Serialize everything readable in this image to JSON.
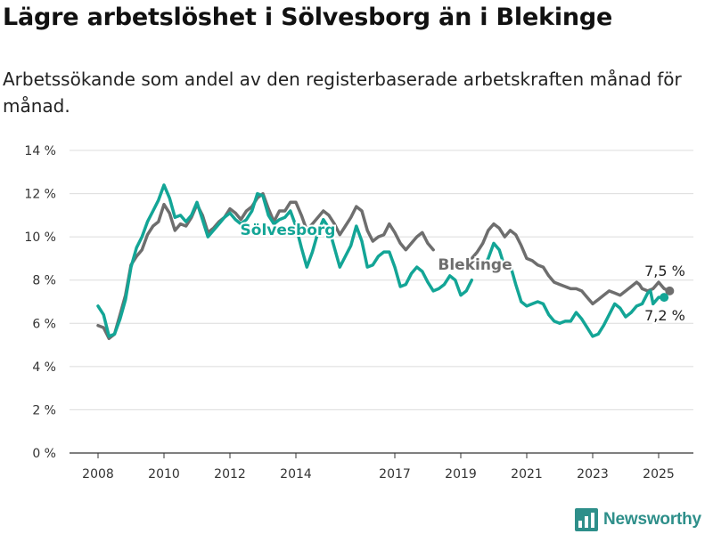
{
  "title": "Lägre arbetslöshet i Sölvesborg än i Blekinge",
  "subtitle": "Arbetssökande som andel av den registerbaserade arbetskraften månad för månad.",
  "brand": {
    "name": "Newsworthy",
    "color": "#2e8f8a",
    "icon": "bar-chart-icon"
  },
  "chart_data": {
    "type": "line",
    "ylim": [
      0,
      14
    ],
    "yticks": [
      "0 %",
      "2 %",
      "4 %",
      "6 %",
      "8 %",
      "10 %",
      "12 %",
      "14 %"
    ],
    "xticks": [
      "2008",
      "2010",
      "2012",
      "2014",
      "2017",
      "2019",
      "2021",
      "2023",
      "2025"
    ],
    "grid": true,
    "series": [
      {
        "name": "Blekinge",
        "color": "#6e6e6e",
        "end_label": "7,5 %",
        "points": [
          [
            "2008-01",
            5.9
          ],
          [
            "2008-03",
            5.8
          ],
          [
            "2008-05",
            5.3
          ],
          [
            "2008-07",
            5.5
          ],
          [
            "2008-09",
            6.4
          ],
          [
            "2008-11",
            7.3
          ],
          [
            "2009-01",
            8.7
          ],
          [
            "2009-03",
            9.1
          ],
          [
            "2009-05",
            9.4
          ],
          [
            "2009-07",
            10.1
          ],
          [
            "2009-09",
            10.5
          ],
          [
            "2009-11",
            10.7
          ],
          [
            "2010-01",
            11.5
          ],
          [
            "2010-03",
            11.1
          ],
          [
            "2010-05",
            10.3
          ],
          [
            "2010-07",
            10.6
          ],
          [
            "2010-09",
            10.5
          ],
          [
            "2010-11",
            10.9
          ],
          [
            "2011-01",
            11.5
          ],
          [
            "2011-03",
            11.0
          ],
          [
            "2011-05",
            10.2
          ],
          [
            "2011-07",
            10.4
          ],
          [
            "2011-09",
            10.7
          ],
          [
            "2011-11",
            10.9
          ],
          [
            "2012-01",
            11.3
          ],
          [
            "2012-03",
            11.1
          ],
          [
            "2012-05",
            10.8
          ],
          [
            "2012-07",
            11.2
          ],
          [
            "2012-09",
            11.4
          ],
          [
            "2012-11",
            11.8
          ],
          [
            "2013-01",
            12.0
          ],
          [
            "2013-03",
            11.3
          ],
          [
            "2013-05",
            10.7
          ],
          [
            "2013-07",
            11.2
          ],
          [
            "2013-09",
            11.2
          ],
          [
            "2013-11",
            11.6
          ],
          [
            "2014-01",
            11.6
          ],
          [
            "2014-03",
            11.0
          ],
          [
            "2014-05",
            10.3
          ],
          [
            "2014-07",
            10.6
          ],
          [
            "2014-09",
            10.9
          ],
          [
            "2014-11",
            11.2
          ],
          [
            "2015-01",
            11.0
          ],
          [
            "2015-03",
            10.6
          ],
          [
            "2015-05",
            10.1
          ],
          [
            "2015-07",
            10.5
          ],
          [
            "2015-09",
            10.9
          ],
          [
            "2015-11",
            11.4
          ],
          [
            "2016-01",
            11.2
          ],
          [
            "2016-03",
            10.3
          ],
          [
            "2016-05",
            9.8
          ],
          [
            "2016-07",
            10.0
          ],
          [
            "2016-09",
            10.1
          ],
          [
            "2016-11",
            10.6
          ],
          [
            "2017-01",
            10.2
          ],
          [
            "2017-03",
            9.7
          ],
          [
            "2017-05",
            9.4
          ],
          [
            "2017-07",
            9.7
          ],
          [
            "2017-09",
            10.0
          ],
          [
            "2017-11",
            10.2
          ],
          [
            "2018-01",
            9.7
          ],
          [
            "2018-03",
            9.4
          ]
        ],
        "points_b": [
          [
            "2019-05",
            9.0
          ],
          [
            "2019-07",
            9.3
          ],
          [
            "2019-09",
            9.7
          ],
          [
            "2019-11",
            10.3
          ],
          [
            "2020-01",
            10.6
          ],
          [
            "2020-03",
            10.4
          ],
          [
            "2020-05",
            10.0
          ],
          [
            "2020-07",
            10.3
          ],
          [
            "2020-09",
            10.1
          ],
          [
            "2020-11",
            9.6
          ],
          [
            "2021-01",
            9.0
          ],
          [
            "2021-03",
            8.9
          ],
          [
            "2021-05",
            8.7
          ],
          [
            "2021-07",
            8.6
          ],
          [
            "2021-09",
            8.2
          ],
          [
            "2021-11",
            7.9
          ],
          [
            "2022-01",
            7.8
          ],
          [
            "2022-03",
            7.7
          ],
          [
            "2022-05",
            7.6
          ],
          [
            "2022-07",
            7.6
          ],
          [
            "2022-09",
            7.5
          ],
          [
            "2022-11",
            7.2
          ],
          [
            "2023-01",
            6.9
          ],
          [
            "2023-03",
            7.1
          ],
          [
            "2023-05",
            7.3
          ],
          [
            "2023-07",
            7.5
          ],
          [
            "2023-09",
            7.4
          ],
          [
            "2023-11",
            7.3
          ],
          [
            "2024-01",
            7.5
          ],
          [
            "2024-03",
            7.7
          ],
          [
            "2024-05",
            7.9
          ],
          [
            "2024-06",
            7.8
          ],
          [
            "2024-07",
            7.6
          ],
          [
            "2024-09",
            7.5
          ],
          [
            "2024-11",
            7.6
          ],
          [
            "2025-01",
            7.9
          ],
          [
            "2025-03",
            7.6
          ],
          [
            "2025-05",
            7.5
          ]
        ]
      },
      {
        "name": "Sölvesborg",
        "color": "#13a596",
        "end_label": "7,2 %",
        "points": [
          [
            "2008-01",
            6.8
          ],
          [
            "2008-03",
            6.4
          ],
          [
            "2008-05",
            5.4
          ],
          [
            "2008-07",
            5.5
          ],
          [
            "2008-09",
            6.2
          ],
          [
            "2008-11",
            7.1
          ],
          [
            "2009-01",
            8.6
          ],
          [
            "2009-03",
            9.5
          ],
          [
            "2009-05",
            10.0
          ],
          [
            "2009-07",
            10.7
          ],
          [
            "2009-09",
            11.2
          ],
          [
            "2009-11",
            11.7
          ],
          [
            "2010-01",
            12.4
          ],
          [
            "2010-03",
            11.8
          ],
          [
            "2010-05",
            10.9
          ],
          [
            "2010-07",
            11.0
          ],
          [
            "2010-09",
            10.7
          ],
          [
            "2010-11",
            11.0
          ],
          [
            "2011-01",
            11.6
          ],
          [
            "2011-03",
            10.8
          ],
          [
            "2011-05",
            10.0
          ],
          [
            "2011-07",
            10.3
          ],
          [
            "2011-09",
            10.6
          ],
          [
            "2011-11",
            10.9
          ],
          [
            "2012-01",
            11.1
          ],
          [
            "2012-03",
            10.8
          ],
          [
            "2012-05",
            10.6
          ],
          [
            "2012-07",
            10.8
          ],
          [
            "2012-09",
            11.2
          ],
          [
            "2012-11",
            12.0
          ],
          [
            "2013-01",
            11.9
          ],
          [
            "2013-03",
            11.0
          ],
          [
            "2013-05",
            10.6
          ],
          [
            "2013-07",
            10.8
          ],
          [
            "2013-09",
            10.9
          ],
          [
            "2013-11",
            11.2
          ],
          [
            "2014-01",
            10.5
          ],
          [
            "2014-03",
            9.5
          ],
          [
            "2014-05",
            8.6
          ],
          [
            "2014-07",
            9.3
          ],
          [
            "2014-09",
            10.2
          ],
          [
            "2014-11",
            10.8
          ],
          [
            "2015-01",
            10.4
          ],
          [
            "2015-03",
            9.5
          ],
          [
            "2015-05",
            8.6
          ],
          [
            "2015-07",
            9.1
          ],
          [
            "2015-09",
            9.6
          ],
          [
            "2015-11",
            10.5
          ],
          [
            "2016-01",
            9.8
          ],
          [
            "2016-03",
            8.6
          ],
          [
            "2016-05",
            8.7
          ],
          [
            "2016-07",
            9.1
          ],
          [
            "2016-09",
            9.3
          ],
          [
            "2016-11",
            9.3
          ],
          [
            "2017-01",
            8.6
          ],
          [
            "2017-03",
            7.7
          ],
          [
            "2017-05",
            7.8
          ],
          [
            "2017-07",
            8.3
          ],
          [
            "2017-09",
            8.6
          ],
          [
            "2017-11",
            8.4
          ],
          [
            "2018-01",
            7.9
          ],
          [
            "2018-03",
            7.5
          ],
          [
            "2018-05",
            7.6
          ],
          [
            "2018-07",
            7.8
          ],
          [
            "2018-09",
            8.2
          ],
          [
            "2018-11",
            8.0
          ],
          [
            "2019-01",
            7.3
          ],
          [
            "2019-03",
            7.5
          ],
          [
            "2019-05",
            8.0
          ]
        ],
        "points_b": [
          [
            "2019-09",
            8.6
          ],
          [
            "2019-11",
            9.0
          ],
          [
            "2020-01",
            9.7
          ],
          [
            "2020-03",
            9.4
          ],
          [
            "2020-05",
            8.6
          ],
          [
            "2020-07",
            8.7
          ],
          [
            "2020-09",
            7.8
          ],
          [
            "2020-11",
            7.0
          ],
          [
            "2021-01",
            6.8
          ],
          [
            "2021-03",
            6.9
          ],
          [
            "2021-05",
            7.0
          ],
          [
            "2021-07",
            6.9
          ],
          [
            "2021-09",
            6.4
          ],
          [
            "2021-11",
            6.1
          ],
          [
            "2022-01",
            6.0
          ],
          [
            "2022-03",
            6.1
          ],
          [
            "2022-05",
            6.1
          ],
          [
            "2022-07",
            6.5
          ],
          [
            "2022-09",
            6.2
          ],
          [
            "2022-11",
            5.8
          ],
          [
            "2023-01",
            5.4
          ],
          [
            "2023-03",
            5.5
          ],
          [
            "2023-05",
            5.9
          ],
          [
            "2023-07",
            6.4
          ],
          [
            "2023-09",
            6.9
          ],
          [
            "2023-11",
            6.7
          ],
          [
            "2024-01",
            6.3
          ],
          [
            "2024-03",
            6.5
          ],
          [
            "2024-05",
            6.8
          ],
          [
            "2024-07",
            6.9
          ],
          [
            "2024-09",
            7.4
          ],
          [
            "2024-10",
            7.5
          ],
          [
            "2024-11",
            6.9
          ],
          [
            "2025-01",
            7.2
          ],
          [
            "2025-03",
            7.2
          ]
        ]
      }
    ]
  }
}
